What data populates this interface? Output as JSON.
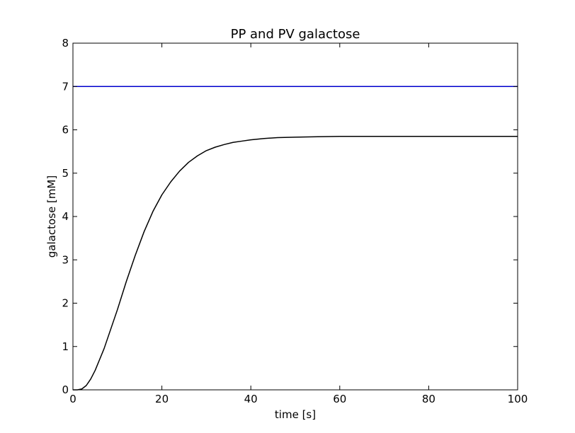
{
  "chart_data": {
    "type": "line",
    "title": "PP and PV galactose",
    "xlabel": "time [s]",
    "ylabel": "galactose [mM]",
    "xlim": [
      0,
      100
    ],
    "ylim": [
      0,
      8
    ],
    "xticks": [
      0,
      20,
      40,
      60,
      80,
      100
    ],
    "yticks": [
      0,
      1,
      2,
      3,
      4,
      5,
      6,
      7,
      8
    ],
    "grid": false,
    "series": [
      {
        "color": "#0000cc",
        "x": [
          0,
          100
        ],
        "y": [
          7,
          7
        ]
      },
      {
        "color": "#000000",
        "x": [
          0,
          1,
          2,
          3,
          4,
          5,
          6,
          7,
          8,
          9,
          10,
          12,
          14,
          16,
          18,
          20,
          22,
          24,
          26,
          28,
          30,
          32,
          34,
          36,
          38,
          40,
          43,
          46,
          50,
          55,
          60,
          70,
          80,
          90,
          100
        ],
        "y": [
          0,
          0,
          0.02,
          0.1,
          0.25,
          0.45,
          0.7,
          0.95,
          1.25,
          1.55,
          1.85,
          2.5,
          3.1,
          3.65,
          4.12,
          4.5,
          4.8,
          5.05,
          5.25,
          5.4,
          5.52,
          5.6,
          5.66,
          5.71,
          5.74,
          5.77,
          5.8,
          5.82,
          5.83,
          5.84,
          5.85,
          5.85,
          5.85,
          5.85,
          5.85
        ]
      }
    ]
  }
}
